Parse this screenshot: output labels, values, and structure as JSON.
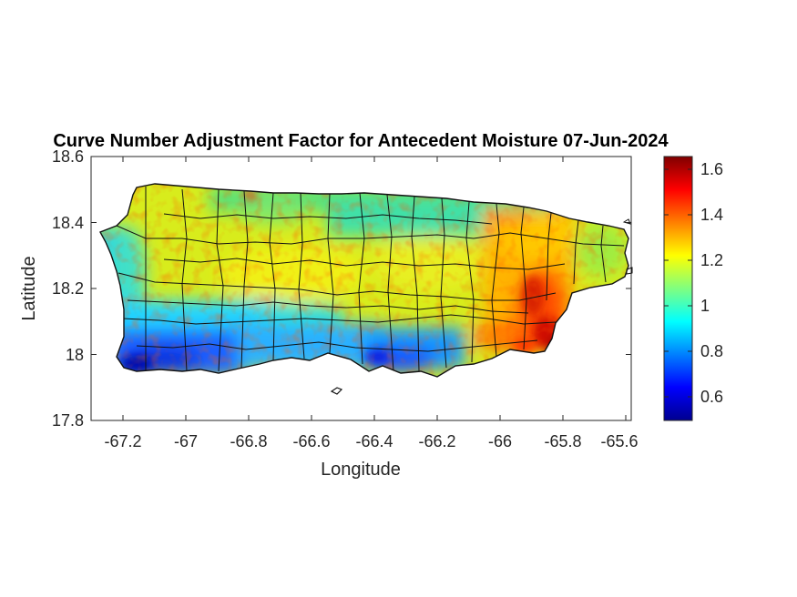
{
  "title": "Curve Number Adjustment Factor for Antecedent Moisture 07-Jun-2024",
  "map": {
    "xlabel": "Longitude",
    "ylabel": "Latitude",
    "xlim": [
      -67.3,
      -65.58
    ],
    "ylim": [
      17.8,
      18.6
    ],
    "xticks": [
      "-67.2",
      "-67",
      "-66.8",
      "-66.6",
      "-66.4",
      "-66.2",
      "-66",
      "-65.8",
      "-65.6"
    ],
    "yticks": [
      "18.6",
      "18.4",
      "18.2",
      "18",
      "17.8"
    ],
    "colormap": "jet",
    "region": "Puerto Rico municipalities"
  },
  "colorbar": {
    "range": [
      0.5,
      1.66
    ],
    "ticks": [
      "1.6",
      "1.4",
      "1.2",
      "1",
      "0.8",
      "0.6"
    ]
  }
}
